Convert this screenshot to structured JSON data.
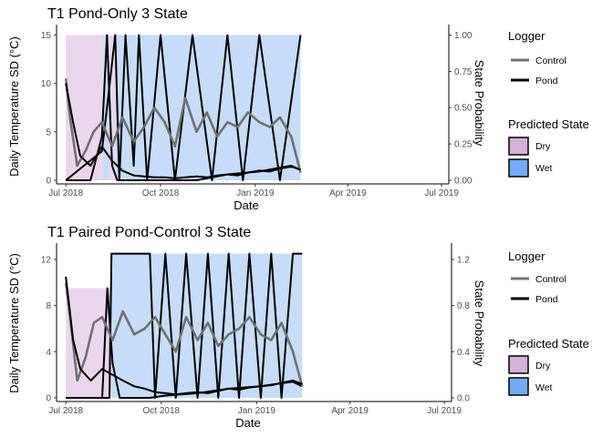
{
  "chart_data": [
    {
      "type": "area",
      "title": "T1 Pond-Only 3 State",
      "xlabel": "Date",
      "ylabel": "Daily Temperature SD (°C)",
      "y2label": "State Probability",
      "x_ticks": [
        "Jul 2018",
        "Oct 2018",
        "Jan 2019",
        "Apr 2019",
        "Jul 2019"
      ],
      "xlim": [
        "2018-06-22",
        "2019-07-08"
      ],
      "y_ticks": [
        0,
        5,
        10,
        15
      ],
      "ylim": [
        0,
        15.7
      ],
      "y2_ticks": [
        "0.00",
        "0.25",
        "0.50",
        "0.75",
        "1.00"
      ],
      "y2lim": [
        0,
        1.047
      ],
      "grid": false,
      "legend_placement": "right",
      "legends": {
        "logger": {
          "title": "Logger",
          "items": [
            {
              "label": "Control",
              "color": "#707070"
            },
            {
              "label": "Pond",
              "color": "#000000"
            }
          ]
        },
        "state": {
          "title": "Predicted State",
          "items": [
            {
              "label": "Dry",
              "color": "#d3b1d8"
            },
            {
              "label": "Wet",
              "color": "#74aaf6"
            }
          ]
        }
      },
      "state_segments": [
        {
          "start": "2018-07-01",
          "end": "2018-08-06",
          "state": "Dry",
          "prob": 1.0
        },
        {
          "start": "2018-08-06",
          "end": "2018-08-12",
          "state": "Wet",
          "prob": 1.0
        },
        {
          "start": "2018-08-12",
          "end": "2018-08-18",
          "state": "Dry",
          "prob": 1.0
        },
        {
          "start": "2018-08-18",
          "end": "2019-02-14",
          "state": "Wet",
          "prob": 1.0
        }
      ],
      "series": [
        {
          "name": "Control",
          "color": "#707070",
          "x": [
            "2018-07-01",
            "2018-07-05",
            "2018-07-12",
            "2018-07-20",
            "2018-07-28",
            "2018-08-05",
            "2018-08-15",
            "2018-08-25",
            "2018-09-05",
            "2018-09-15",
            "2018-09-25",
            "2018-10-05",
            "2018-10-15",
            "2018-10-25",
            "2018-11-05",
            "2018-11-15",
            "2018-11-25",
            "2018-12-05",
            "2018-12-15",
            "2018-12-25",
            "2019-01-05",
            "2019-01-15",
            "2019-01-25",
            "2019-02-05",
            "2019-02-14"
          ],
          "y": [
            10.5,
            6.5,
            1.5,
            3.0,
            5.0,
            6.0,
            3.5,
            6.5,
            4.0,
            5.5,
            7.5,
            6.0,
            3.5,
            8.5,
            5.0,
            7.0,
            4.5,
            6.0,
            5.5,
            7.0,
            6.0,
            5.5,
            6.5,
            4.5,
            0.8
          ]
        },
        {
          "name": "Pond",
          "color": "#000000",
          "x": [
            "2018-07-01",
            "2018-07-08",
            "2018-07-15",
            "2018-07-25",
            "2018-08-05",
            "2018-08-15",
            "2018-08-25",
            "2018-09-05",
            "2018-09-15",
            "2018-09-25",
            "2018-10-05",
            "2018-10-15",
            "2018-10-25",
            "2018-11-05",
            "2018-11-15",
            "2018-11-25",
            "2018-12-05",
            "2018-12-15",
            "2018-12-25",
            "2019-01-05",
            "2019-01-15",
            "2019-01-25",
            "2019-02-05",
            "2019-02-14"
          ],
          "y": [
            10.0,
            6.0,
            2.5,
            1.5,
            3.5,
            2.0,
            1.0,
            0.5,
            0.4,
            0.3,
            0.3,
            0.2,
            0.3,
            0.4,
            0.3,
            0.5,
            0.6,
            0.5,
            0.8,
            1.0,
            0.9,
            1.2,
            1.4,
            1.1
          ]
        }
      ],
      "probability_series": [
        {
          "name": "Dry",
          "x": [
            "2018-07-01",
            "2018-07-25",
            "2018-08-05",
            "2018-08-10",
            "2018-08-15",
            "2018-08-20",
            "2018-09-05",
            "2018-09-20",
            "2018-10-05",
            "2018-10-20",
            "2018-11-05",
            "2018-11-20",
            "2018-12-05",
            "2018-12-20",
            "2019-01-05",
            "2019-01-20",
            "2019-02-05",
            "2019-02-14"
          ],
          "y": [
            0.0,
            0.0,
            0.3,
            1.0,
            0.1,
            0.0,
            0.0,
            0.0,
            0.0,
            0.0,
            0.0,
            0.02,
            0.04,
            0.05,
            0.06,
            0.08,
            0.1,
            0.07
          ]
        },
        {
          "name": "Wet",
          "x": [
            "2018-07-01",
            "2018-08-05",
            "2018-08-10",
            "2018-08-18",
            "2018-08-22",
            "2018-08-28",
            "2018-09-05",
            "2018-09-10",
            "2018-09-18",
            "2018-10-01",
            "2018-10-15",
            "2018-11-01",
            "2018-11-20",
            "2018-12-05",
            "2018-12-20",
            "2019-01-05",
            "2019-01-25",
            "2019-02-14"
          ],
          "y": [
            0.0,
            0.2,
            0.5,
            1.0,
            0.0,
            1.0,
            0.1,
            1.0,
            0.0,
            1.0,
            0.0,
            1.0,
            0.0,
            1.0,
            0.0,
            1.0,
            0.0,
            1.0
          ]
        }
      ]
    },
    {
      "type": "area",
      "title": "T1 Paired Pond-Control 3 State",
      "xlabel": "Date",
      "ylabel": "Daily Temperature SD (°C)",
      "y2label": "State Probability",
      "x_ticks": [
        "Jul 2018",
        "Oct 2018",
        "Jan 2019",
        "Apr 2019",
        "Jul 2019"
      ],
      "xlim": [
        "2018-06-22",
        "2019-07-08"
      ],
      "y_ticks": [
        0,
        4,
        8,
        12
      ],
      "ylim": [
        0,
        13.1
      ],
      "y2_ticks": [
        "0.0",
        "0.4",
        "0.8",
        "1.2"
      ],
      "y2lim": [
        0,
        1.31
      ],
      "grid": false,
      "legend_placement": "right",
      "legends": {
        "logger": {
          "title": "Logger",
          "items": [
            {
              "label": "Control",
              "color": "#707070"
            },
            {
              "label": "Pond",
              "color": "#000000"
            }
          ]
        },
        "state": {
          "title": "Predicted State",
          "items": [
            {
              "label": "Dry",
              "color": "#d3b1d8"
            },
            {
              "label": "Wet",
              "color": "#74aaf6"
            }
          ]
        }
      },
      "state_segments": [
        {
          "start": "2018-07-01",
          "end": "2018-08-14",
          "state": "Dry",
          "prob": 0.95
        },
        {
          "start": "2018-08-14",
          "end": "2019-02-14",
          "state": "Wet",
          "prob": 1.25
        }
      ],
      "series": [
        {
          "name": "Control",
          "color": "#707070",
          "x": [
            "2018-07-01",
            "2018-07-05",
            "2018-07-12",
            "2018-07-20",
            "2018-07-28",
            "2018-08-05",
            "2018-08-15",
            "2018-08-25",
            "2018-09-05",
            "2018-09-15",
            "2018-09-25",
            "2018-10-05",
            "2018-10-15",
            "2018-10-25",
            "2018-11-05",
            "2018-11-15",
            "2018-11-25",
            "2018-12-05",
            "2018-12-15",
            "2018-12-25",
            "2019-01-05",
            "2019-01-15",
            "2019-01-25",
            "2019-02-05",
            "2019-02-14"
          ],
          "y": [
            10.0,
            7.0,
            1.5,
            3.5,
            6.5,
            7.0,
            5.0,
            7.5,
            5.5,
            6.0,
            7.0,
            5.5,
            4.0,
            7.0,
            5.0,
            6.5,
            4.5,
            5.5,
            6.0,
            7.0,
            5.5,
            5.0,
            6.5,
            4.0,
            1.0
          ]
        },
        {
          "name": "Pond",
          "color": "#000000",
          "x": [
            "2018-07-01",
            "2018-07-08",
            "2018-07-15",
            "2018-07-25",
            "2018-08-05",
            "2018-08-15",
            "2018-08-25",
            "2018-09-05",
            "2018-09-15",
            "2018-09-25",
            "2018-10-05",
            "2018-10-15",
            "2018-10-25",
            "2018-11-05",
            "2018-11-15",
            "2018-11-25",
            "2018-12-05",
            "2018-12-15",
            "2018-12-25",
            "2019-01-05",
            "2019-01-15",
            "2019-01-25",
            "2019-02-05",
            "2019-02-14"
          ],
          "y": [
            10.5,
            5.0,
            2.5,
            1.5,
            2.5,
            2.0,
            1.5,
            1.0,
            0.8,
            0.5,
            0.4,
            0.3,
            0.4,
            0.5,
            0.4,
            0.6,
            0.8,
            0.7,
            0.9,
            1.0,
            1.1,
            1.3,
            1.5,
            1.2
          ]
        }
      ],
      "probability_series": [
        {
          "name": "Dry",
          "x": [
            "2018-07-01",
            "2018-08-05",
            "2018-08-10",
            "2018-08-15",
            "2018-08-22",
            "2018-09-05",
            "2018-09-20",
            "2018-10-05",
            "2018-10-20",
            "2018-11-05",
            "2018-11-20",
            "2018-12-05",
            "2018-12-20",
            "2019-01-05",
            "2019-01-20",
            "2019-02-05",
            "2019-02-14"
          ],
          "y": [
            0.0,
            0.0,
            0.95,
            0.3,
            0.0,
            0.0,
            0.0,
            0.02,
            0.03,
            0.04,
            0.06,
            0.08,
            0.09,
            0.1,
            0.12,
            0.14,
            0.1
          ]
        },
        {
          "name": "Wet",
          "x": [
            "2018-07-01",
            "2018-08-12",
            "2018-08-14",
            "2018-09-20",
            "2018-09-25",
            "2018-10-05",
            "2018-10-15",
            "2018-10-25",
            "2018-11-05",
            "2018-11-15",
            "2018-11-25",
            "2018-12-05",
            "2018-12-15",
            "2018-12-25",
            "2019-01-05",
            "2019-01-15",
            "2019-01-25",
            "2019-02-05",
            "2019-02-14"
          ],
          "y": [
            0.0,
            0.0,
            1.25,
            1.25,
            0.0,
            1.25,
            0.0,
            1.25,
            0.0,
            1.25,
            0.0,
            1.25,
            0.0,
            1.25,
            0.0,
            1.25,
            0.0,
            1.25,
            1.25
          ]
        }
      ]
    }
  ]
}
